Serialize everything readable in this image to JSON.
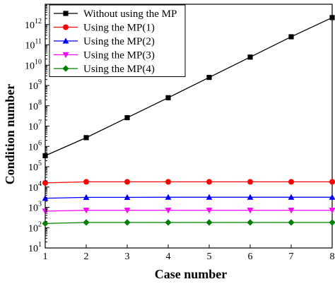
{
  "chart_data": {
    "type": "line",
    "xlabel": "Case number",
    "ylabel": "Condition number",
    "x": [
      1,
      2,
      3,
      4,
      5,
      6,
      7,
      8
    ],
    "xlim": [
      1,
      8
    ],
    "ylim": [
      10,
      10000000000000
    ],
    "yscale": "log",
    "x_ticks": [
      1,
      2,
      3,
      4,
      5,
      6,
      7,
      8
    ],
    "y_tick_exponents": [
      1,
      2,
      3,
      4,
      5,
      6,
      7,
      8,
      9,
      10,
      11,
      12
    ],
    "y_tick_base": "10",
    "legend_position": "top-left",
    "grid": false,
    "series": [
      {
        "name": "Without using the MP",
        "color": "#000000",
        "marker": "square",
        "values": [
          350000,
          2700000,
          26000000,
          250000000,
          2500000000,
          25000000000,
          250000000000,
          2200000000000
        ]
      },
      {
        "name": "Using the MP(1)",
        "color": "#ff0000",
        "marker": "circle",
        "values": [
          16000,
          18000,
          18000,
          18000,
          18000,
          18000,
          18000,
          18000
        ]
      },
      {
        "name": "Using the MP(2)",
        "color": "#0000ff",
        "marker": "triangle-up",
        "values": [
          2800,
          3100,
          3100,
          3150,
          3150,
          3150,
          3150,
          3150
        ]
      },
      {
        "name": "Using the MP(3)",
        "color": "#ff00ff",
        "marker": "triangle-down",
        "values": [
          650,
          720,
          720,
          720,
          720,
          720,
          720,
          720
        ]
      },
      {
        "name": "Using the MP(4)",
        "color": "#008000",
        "marker": "diamond",
        "values": [
          160,
          180,
          180,
          180,
          180,
          180,
          180,
          180
        ]
      }
    ]
  }
}
